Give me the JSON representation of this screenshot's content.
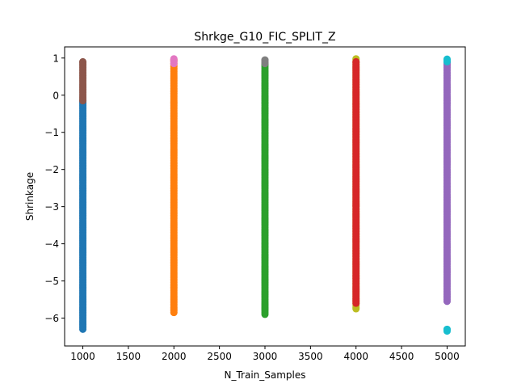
{
  "chart_data": {
    "type": "scatter",
    "title": "Shrkge_G10_FIC_SPLIT_Z",
    "xlabel": "N_Train_Samples",
    "ylabel": "Shrinkage",
    "xlim": [
      800,
      5200
    ],
    "ylim": [
      -6.75,
      1.3
    ],
    "x_ticks": [
      1000,
      1500,
      2000,
      2500,
      3000,
      3500,
      4000,
      4500,
      5000
    ],
    "y_ticks": [
      1,
      0,
      -1,
      -2,
      -3,
      -4,
      -5,
      -6
    ],
    "grid": false,
    "legend": "none",
    "series": [
      {
        "color": "#1f77b4",
        "x": 1000,
        "y_min": -6.3,
        "y_max": -0.15
      },
      {
        "color": "#8c564b",
        "x": 1000,
        "y_min": -0.15,
        "y_max": 0.9
      },
      {
        "color": "#ff7f0e",
        "x": 2000,
        "y_min": -5.85,
        "y_max": 0.95
      },
      {
        "color": "#e377c2",
        "x": 2000,
        "y_min": 0.85,
        "y_max": 0.98
      },
      {
        "color": "#2ca02c",
        "x": 3000,
        "y_min": -5.9,
        "y_max": 0.85
      },
      {
        "color": "#7f7f7f",
        "x": 3000,
        "y_min": 0.85,
        "y_max": 0.95
      },
      {
        "color": "#bcbd22",
        "x": 4000,
        "y_min": -5.75,
        "y_max": 0.98
      },
      {
        "color": "#d62728",
        "x": 4000,
        "y_min": -5.6,
        "y_max": 0.9
      },
      {
        "color": "#9467bd",
        "x": 5000,
        "y_min": -5.55,
        "y_max": 0.9
      },
      {
        "color": "#17becf",
        "x": 5000,
        "y_min": 0.9,
        "y_max": 0.97
      },
      {
        "color": "#17becf",
        "x": 5000,
        "y_min": -6.35,
        "y_max": -6.3
      }
    ]
  }
}
